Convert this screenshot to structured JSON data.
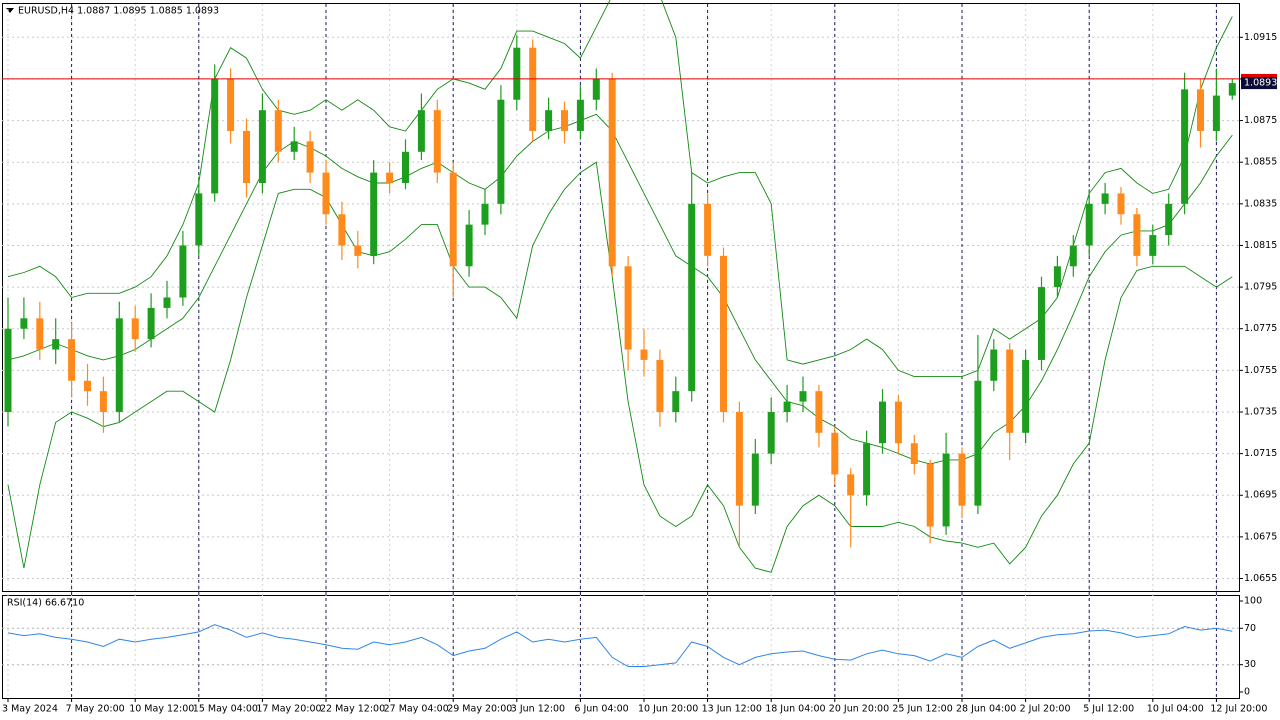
{
  "chart_data": [
    {
      "type": "candlestick",
      "title": "EURUSD,H4  1.0887 1.0895 1.0885 1.0893",
      "ylim": [
        1.0649,
        1.0931
      ],
      "yticks": [
        1.0915,
        1.0895,
        1.0875,
        1.0855,
        1.0835,
        1.0815,
        1.0795,
        1.0775,
        1.0755,
        1.0735,
        1.0715,
        1.0695,
        1.0675,
        1.0655
      ],
      "grid": true,
      "x_labels": [
        "3 May 2024",
        "7 May 20:00",
        "10 May 12:00",
        "15 May 04:00",
        "17 May 20:00",
        "22 May 12:00",
        "27 May 04:00",
        "29 May 20:00",
        "3 Jun 12:00",
        "6 Jun 04:00",
        "10 Jun 20:00",
        "13 Jun 12:00",
        "18 Jun 04:00",
        "20 Jun 20:00",
        "25 Jun 12:00",
        "28 Jun 04:00",
        "2 Jul 20:00",
        "5 Jul 12:00",
        "10 Jul 04:00",
        "12 Jul 20:00"
      ],
      "bull_color": "#1e9e1e",
      "bear_color": "#ff8a1c",
      "open": [
        1.0735,
        1.0775,
        1.078,
        1.0765,
        1.077,
        1.075,
        1.0745,
        1.0735,
        1.078,
        1.077,
        1.0785,
        1.079,
        1.0815,
        1.084,
        1.0895,
        1.087,
        1.0845,
        1.088,
        1.086,
        1.0865,
        1.085,
        1.083,
        1.0815,
        1.081,
        1.085,
        1.0845,
        1.086,
        1.088,
        1.085,
        1.0805,
        1.0825,
        1.0835,
        1.0885,
        1.091,
        1.087,
        1.088,
        1.087,
        1.0885,
        1.0895,
        1.0805,
        1.0765,
        1.076,
        1.0735,
        1.0745,
        1.0835,
        1.081,
        1.0735,
        1.069,
        1.0715,
        1.0735,
        1.074,
        1.0745,
        1.0725,
        1.0705,
        1.0695,
        1.072,
        1.074,
        1.072,
        1.071,
        1.068,
        1.0715,
        1.069,
        1.075,
        1.0765,
        1.0725,
        1.076,
        1.0795,
        1.0805,
        1.0815,
        1.0835,
        1.084,
        1.083,
        1.081,
        1.082,
        1.0835,
        1.089,
        1.087,
        1.0887
      ],
      "high": [
        1.079,
        1.079,
        1.0788,
        1.078,
        1.0778,
        1.0758,
        1.0752,
        1.0788,
        1.0786,
        1.0792,
        1.0798,
        1.0822,
        1.0848,
        1.0902,
        1.09,
        1.0876,
        1.0888,
        1.0885,
        1.0872,
        1.087,
        1.0856,
        1.0836,
        1.0822,
        1.0856,
        1.0855,
        1.0866,
        1.0888,
        1.0885,
        1.0855,
        1.0832,
        1.0842,
        1.0892,
        1.0916,
        1.0914,
        1.0886,
        1.0884,
        1.0892,
        1.09,
        1.0898,
        1.081,
        1.0775,
        1.0765,
        1.0752,
        1.085,
        1.084,
        1.0814,
        1.074,
        1.0722,
        1.0742,
        1.0748,
        1.0752,
        1.0748,
        1.0728,
        1.0708,
        1.0726,
        1.0746,
        1.0743,
        1.0724,
        1.0712,
        1.0725,
        1.0718,
        1.0772,
        1.077,
        1.0768,
        1.0765,
        1.08,
        1.081,
        1.082,
        1.0842,
        1.0845,
        1.0843,
        1.0833,
        1.0825,
        1.084,
        1.0898,
        1.0895,
        1.09,
        1.0895
      ],
      "low": [
        1.0728,
        1.077,
        1.076,
        1.0758,
        1.0742,
        1.0738,
        1.0725,
        1.073,
        1.0764,
        1.0766,
        1.078,
        1.0786,
        1.081,
        1.0836,
        1.0864,
        1.0838,
        1.084,
        1.0855,
        1.0856,
        1.0845,
        1.0825,
        1.0808,
        1.0804,
        1.0806,
        1.084,
        1.0842,
        1.0856,
        1.0845,
        1.079,
        1.08,
        1.082,
        1.083,
        1.088,
        1.0865,
        1.0866,
        1.0864,
        1.0866,
        1.088,
        1.08,
        1.0755,
        1.0752,
        1.0728,
        1.073,
        1.074,
        1.0805,
        1.073,
        1.067,
        1.0686,
        1.071,
        1.073,
        1.0735,
        1.0718,
        1.07,
        1.067,
        1.069,
        1.0715,
        1.0715,
        1.0705,
        1.0672,
        1.0676,
        1.0684,
        1.0686,
        1.0745,
        1.0712,
        1.072,
        1.0755,
        1.079,
        1.08,
        1.081,
        1.083,
        1.0825,
        1.0805,
        1.0806,
        1.0815,
        1.083,
        1.0862,
        1.0865,
        1.0885
      ],
      "close": [
        1.0775,
        1.078,
        1.0765,
        1.077,
        1.075,
        1.0745,
        1.0735,
        1.078,
        1.077,
        1.0785,
        1.079,
        1.0815,
        1.084,
        1.0895,
        1.087,
        1.0845,
        1.088,
        1.086,
        1.0865,
        1.085,
        1.083,
        1.0815,
        1.081,
        1.085,
        1.0845,
        1.086,
        1.088,
        1.085,
        1.0805,
        1.0825,
        1.0835,
        1.0885,
        1.091,
        1.087,
        1.088,
        1.087,
        1.0885,
        1.0895,
        1.0805,
        1.0765,
        1.076,
        1.0735,
        1.0745,
        1.0835,
        1.081,
        1.0735,
        1.069,
        1.0715,
        1.0735,
        1.074,
        1.0745,
        1.0725,
        1.0705,
        1.0695,
        1.072,
        1.074,
        1.072,
        1.071,
        1.068,
        1.0715,
        1.069,
        1.075,
        1.0765,
        1.0725,
        1.076,
        1.0795,
        1.0805,
        1.0815,
        1.0835,
        1.084,
        1.083,
        1.081,
        1.082,
        1.0835,
        1.089,
        1.087,
        1.0887,
        1.0893
      ],
      "bands": {
        "color": "#118a11",
        "upper": [
          1.08,
          1.0802,
          1.0805,
          1.08,
          1.079,
          1.0792,
          1.0792,
          1.0792,
          1.0795,
          1.08,
          1.081,
          1.0825,
          1.0845,
          1.0895,
          1.091,
          1.0905,
          1.089,
          1.088,
          1.0878,
          1.088,
          1.0885,
          1.088,
          1.0885,
          1.088,
          1.0872,
          1.087,
          1.088,
          1.089,
          1.0895,
          1.0893,
          1.089,
          1.09,
          1.0918,
          1.0918,
          1.0915,
          1.0912,
          1.0905,
          1.092,
          1.0935,
          1.0935,
          1.0935,
          1.0935,
          1.0915,
          1.085,
          1.0845,
          1.0848,
          1.085,
          1.085,
          1.0835,
          1.076,
          1.0758,
          1.076,
          1.0762,
          1.0765,
          1.077,
          1.0765,
          1.0755,
          1.0752,
          1.0752,
          1.0752,
          1.0752,
          1.0755,
          1.0775,
          1.077,
          1.0775,
          1.078,
          1.079,
          1.0815,
          1.084,
          1.085,
          1.0852,
          1.0845,
          1.084,
          1.0842,
          1.0858,
          1.089,
          1.091,
          1.0925
        ],
        "middle": [
          1.076,
          1.0762,
          1.0765,
          1.0768,
          1.0765,
          1.0762,
          1.076,
          1.0762,
          1.0765,
          1.077,
          1.0775,
          1.078,
          1.079,
          1.0805,
          1.082,
          1.0835,
          1.085,
          1.086,
          1.0865,
          1.0862,
          1.0858,
          1.0852,
          1.0848,
          1.0845,
          1.0845,
          1.0848,
          1.0852,
          1.0855,
          1.085,
          1.0845,
          1.0842,
          1.0848,
          1.0858,
          1.0865,
          1.087,
          1.0872,
          1.0875,
          1.0878,
          1.087,
          1.0855,
          1.084,
          1.0825,
          1.081,
          1.0805,
          1.08,
          1.079,
          1.0775,
          1.076,
          1.075,
          1.074,
          1.0738,
          1.0732,
          1.0728,
          1.0722,
          1.072,
          1.0718,
          1.0715,
          1.0712,
          1.071,
          1.0712,
          1.0712,
          1.0715,
          1.0725,
          1.073,
          1.0738,
          1.075,
          1.0765,
          1.0782,
          1.08,
          1.0812,
          1.082,
          1.0822,
          1.0822,
          1.0825,
          1.0835,
          1.0845,
          1.0858,
          1.0868
        ],
        "lower": [
          1.07,
          1.066,
          1.07,
          1.073,
          1.0735,
          1.0732,
          1.0728,
          1.073,
          1.0735,
          1.074,
          1.0745,
          1.0745,
          1.074,
          1.0735,
          1.076,
          1.079,
          1.0815,
          1.084,
          1.0842,
          1.0842,
          1.0838,
          1.0825,
          1.0812,
          1.081,
          1.0812,
          1.0818,
          1.0825,
          1.0825,
          1.0805,
          1.0795,
          1.0795,
          1.079,
          1.078,
          1.0815,
          1.083,
          1.0842,
          1.085,
          1.0855,
          1.08,
          1.074,
          1.07,
          1.0685,
          1.068,
          1.0685,
          1.07,
          1.069,
          1.067,
          1.066,
          1.0658,
          1.068,
          1.069,
          1.0695,
          1.069,
          1.068,
          1.068,
          1.068,
          1.0682,
          1.068,
          1.0675,
          1.0673,
          1.0672,
          1.067,
          1.0672,
          1.0662,
          1.067,
          1.0685,
          1.0695,
          1.071,
          1.072,
          1.076,
          1.079,
          1.0803,
          1.0805,
          1.0805,
          1.0805,
          1.08,
          1.0795,
          1.08
        ]
      },
      "price_line": {
        "value": 1.0895,
        "color": "#e00000"
      },
      "price_label": {
        "value": 1.0893,
        "label": "1.0893"
      }
    },
    {
      "type": "line",
      "title": "RSI(14) 66.6710",
      "color": "#2f86e8",
      "ylim": [
        -6.6,
        105.5
      ],
      "yticks": [
        100,
        70,
        30,
        0
      ],
      "levels": [
        70,
        30
      ],
      "values": [
        65,
        62,
        64,
        60,
        58,
        55,
        50,
        58,
        55,
        58,
        60,
        63,
        66,
        74,
        68,
        60,
        65,
        60,
        58,
        55,
        52,
        48,
        47,
        55,
        52,
        55,
        60,
        52,
        40,
        45,
        48,
        58,
        66,
        55,
        58,
        55,
        58,
        60,
        38,
        28,
        28,
        30,
        32,
        55,
        50,
        38,
        30,
        38,
        42,
        44,
        45,
        40,
        36,
        35,
        42,
        46,
        42,
        40,
        34,
        42,
        38,
        50,
        57,
        48,
        54,
        60,
        63,
        64,
        67,
        68,
        65,
        60,
        62,
        64,
        72,
        68,
        70,
        66.671
      ]
    }
  ]
}
